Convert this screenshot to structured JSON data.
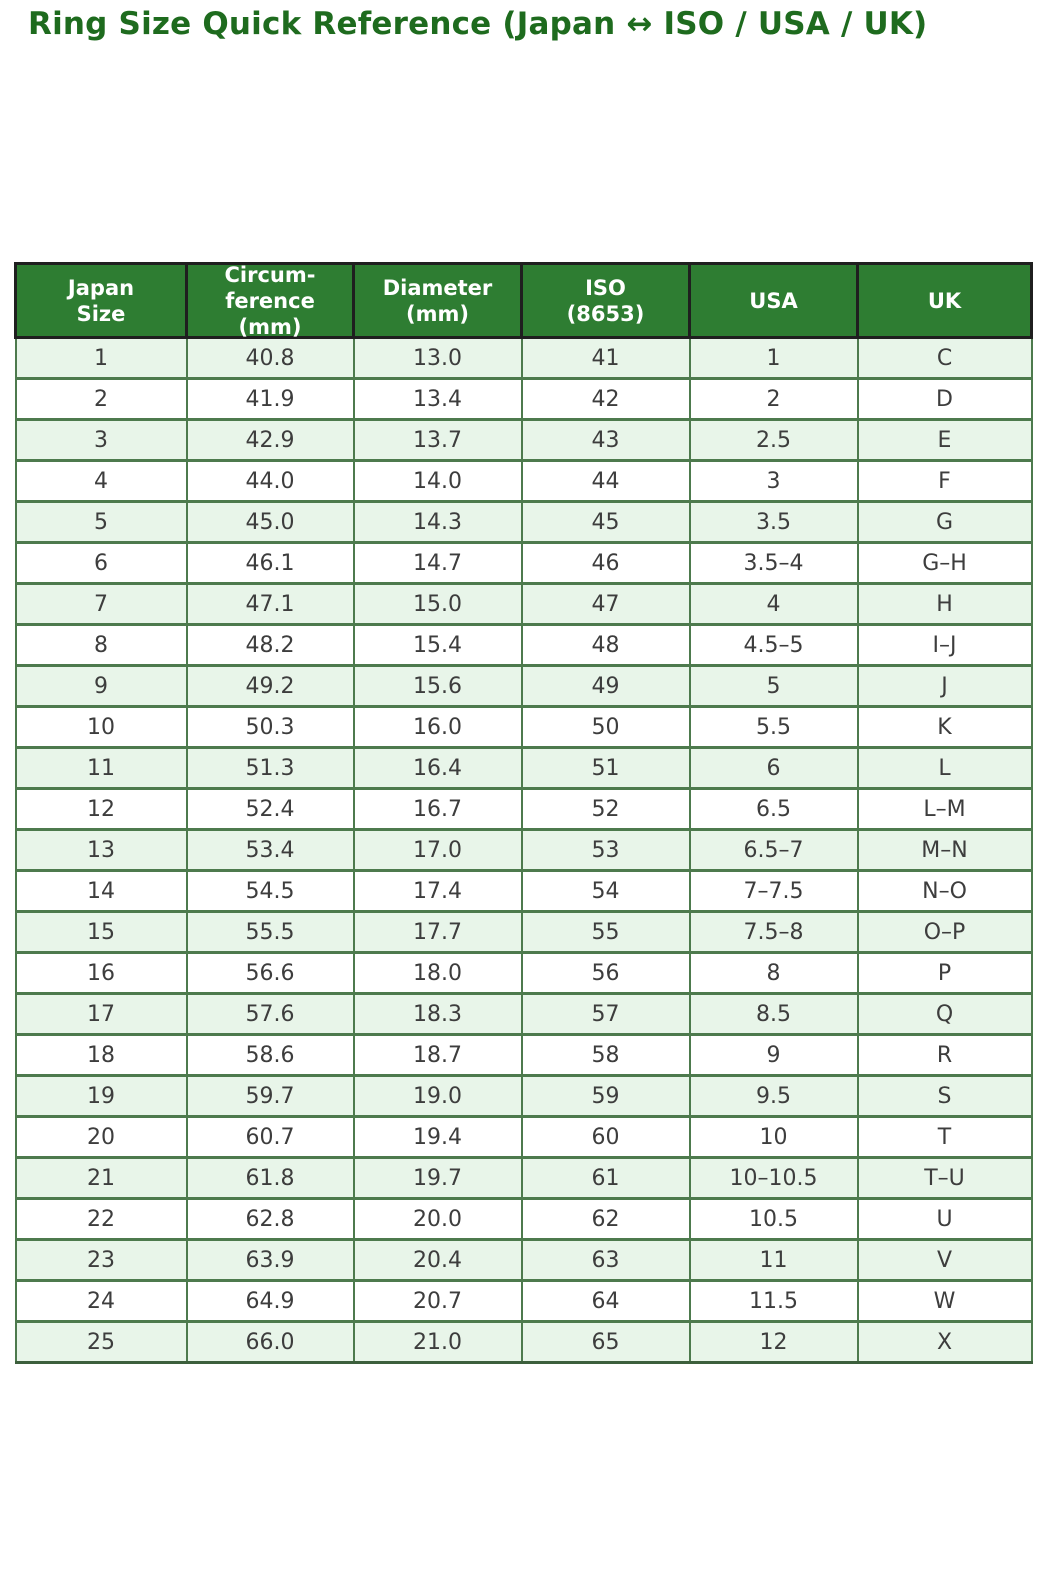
{
  "page": {
    "title": "Ring Size Quick Reference (Japan ↔ ISO / USA / UK)"
  },
  "colors": {
    "title_text": "#1e6b1e",
    "header_bg": "#2e7d32",
    "header_text": "#ffffff",
    "header_border": "#1f1f1f",
    "grid_line": "#4d7a4d",
    "row_alt_bg": "#e8f5e9",
    "row_bg": "#ffffff",
    "cell_text": "#3d3d3d"
  },
  "chart_data": {
    "type": "table",
    "title": "Ring Size Quick Reference (Japan ↔ ISO / USA / UK)",
    "columns": [
      "Japan\nSize",
      "Circum-\nference\n(mm)",
      "Diameter\n(mm)",
      "ISO\n(8653)",
      "USA",
      "UK"
    ],
    "rows": [
      [
        "1",
        "40.8",
        "13.0",
        "41",
        "1",
        "C"
      ],
      [
        "2",
        "41.9",
        "13.4",
        "42",
        "2",
        "D"
      ],
      [
        "3",
        "42.9",
        "13.7",
        "43",
        "2.5",
        "E"
      ],
      [
        "4",
        "44.0",
        "14.0",
        "44",
        "3",
        "F"
      ],
      [
        "5",
        "45.0",
        "14.3",
        "45",
        "3.5",
        "G"
      ],
      [
        "6",
        "46.1",
        "14.7",
        "46",
        "3.5–4",
        "G–H"
      ],
      [
        "7",
        "47.1",
        "15.0",
        "47",
        "4",
        "H"
      ],
      [
        "8",
        "48.2",
        "15.4",
        "48",
        "4.5–5",
        "I–J"
      ],
      [
        "9",
        "49.2",
        "15.6",
        "49",
        "5",
        "J"
      ],
      [
        "10",
        "50.3",
        "16.0",
        "50",
        "5.5",
        "K"
      ],
      [
        "11",
        "51.3",
        "16.4",
        "51",
        "6",
        "L"
      ],
      [
        "12",
        "52.4",
        "16.7",
        "52",
        "6.5",
        "L–M"
      ],
      [
        "13",
        "53.4",
        "17.0",
        "53",
        "6.5–7",
        "M–N"
      ],
      [
        "14",
        "54.5",
        "17.4",
        "54",
        "7–7.5",
        "N–O"
      ],
      [
        "15",
        "55.5",
        "17.7",
        "55",
        "7.5–8",
        "O–P"
      ],
      [
        "16",
        "56.6",
        "18.0",
        "56",
        "8",
        "P"
      ],
      [
        "17",
        "57.6",
        "18.3",
        "57",
        "8.5",
        "Q"
      ],
      [
        "18",
        "58.6",
        "18.7",
        "58",
        "9",
        "R"
      ],
      [
        "19",
        "59.7",
        "19.0",
        "59",
        "9.5",
        "S"
      ],
      [
        "20",
        "60.7",
        "19.4",
        "60",
        "10",
        "T"
      ],
      [
        "21",
        "61.8",
        "19.7",
        "61",
        "10–10.5",
        "T–U"
      ],
      [
        "22",
        "62.8",
        "20.0",
        "62",
        "10.5",
        "U"
      ],
      [
        "23",
        "63.9",
        "20.4",
        "63",
        "11",
        "V"
      ],
      [
        "24",
        "64.9",
        "20.7",
        "64",
        "11.5",
        "W"
      ],
      [
        "25",
        "66.0",
        "21.0",
        "65",
        "12",
        "X"
      ]
    ]
  }
}
